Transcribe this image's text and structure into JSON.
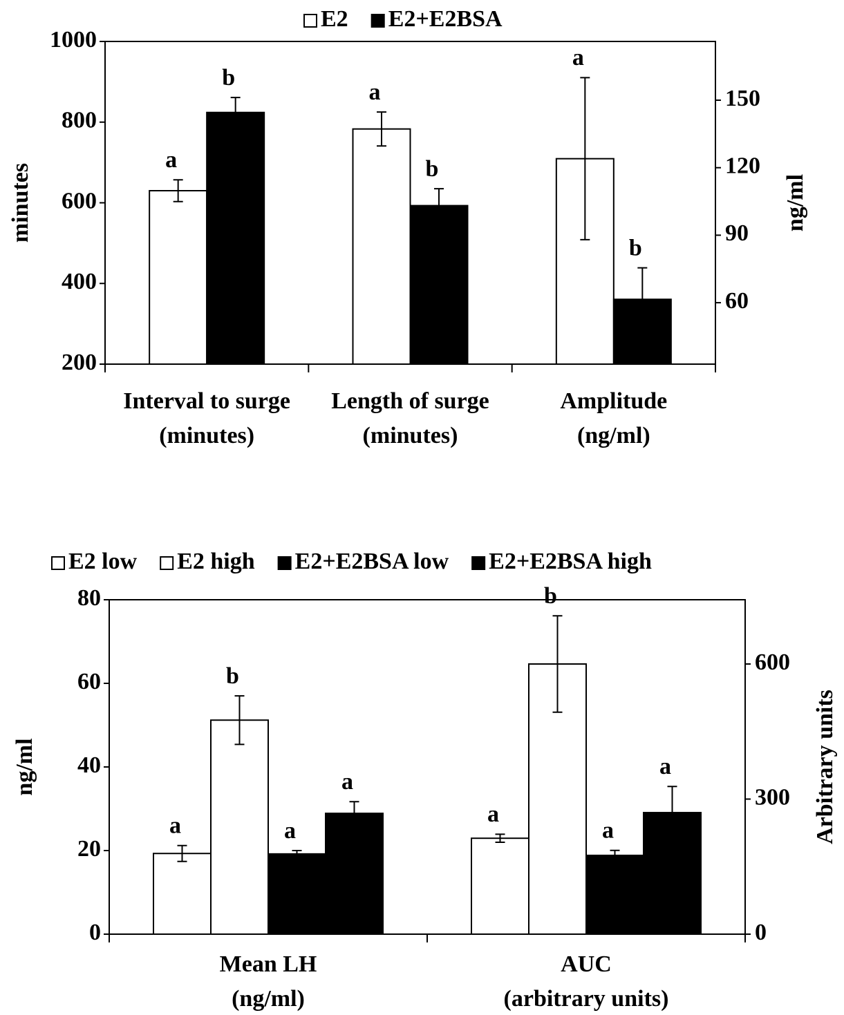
{
  "chart_data": [
    {
      "type": "bar",
      "categories": [
        "Interval to surge",
        "Length of surge",
        "Amplitude"
      ],
      "category_sublabels": [
        "(minutes)",
        "(minutes)",
        "(ng/ml)"
      ],
      "category_axis": [
        "y",
        "y",
        "y2"
      ],
      "ylabel": "minutes",
      "y2label": "ng/ml",
      "ylim": [
        200,
        1000
      ],
      "yticks": [
        200,
        400,
        600,
        800,
        1000
      ],
      "y2lim": [
        32.7,
        176.1
      ],
      "y2ticks": [
        60,
        90,
        120,
        150
      ],
      "series": [
        {
          "name": "E2",
          "color": "#ffffff",
          "values": [
            630,
            783,
            124
          ],
          "errors": [
            27,
            42,
            36
          ],
          "annotations": [
            "a",
            "a",
            "a"
          ]
        },
        {
          "name": "E2+E2BSA",
          "color": "#000000",
          "values": [
            824,
            593,
            61.5
          ],
          "errors": [
            37,
            42,
            14
          ],
          "annotations": [
            "b",
            "b",
            "b"
          ]
        }
      ]
    },
    {
      "type": "bar",
      "categories": [
        "Mean LH",
        "AUC"
      ],
      "category_sublabels": [
        "(ng/ml)",
        "(arbitrary units)"
      ],
      "category_axis": [
        "y",
        "y2"
      ],
      "ylabel": "ng/ml",
      "y2label": "Arbitrary units",
      "ylim": [
        0,
        80
      ],
      "yticks": [
        0,
        20,
        40,
        60,
        80
      ],
      "y2lim": [
        0,
        742.7
      ],
      "y2ticks": [
        0,
        300,
        600
      ],
      "series": [
        {
          "name": "E2 low",
          "color": "#ffffff",
          "values": [
            19.3,
            213
          ],
          "errors": [
            1.9,
            9
          ],
          "annotations": [
            "a",
            "a"
          ]
        },
        {
          "name": "E2 high",
          "color": "#ffffff",
          "values": [
            51.2,
            600
          ],
          "errors": [
            5.8,
            107
          ],
          "annotations": [
            "b",
            "b"
          ]
        },
        {
          "name": "E2+E2BSA low",
          "color": "#000000",
          "values": [
            19.2,
            175
          ],
          "errors": [
            0.8,
            11
          ],
          "annotations": [
            "a",
            "a"
          ]
        },
        {
          "name": "E2+E2BSA high",
          "color": "#000000",
          "values": [
            28.9,
            270
          ],
          "errors": [
            2.8,
            58
          ],
          "annotations": [
            "a",
            "a"
          ]
        }
      ]
    }
  ]
}
